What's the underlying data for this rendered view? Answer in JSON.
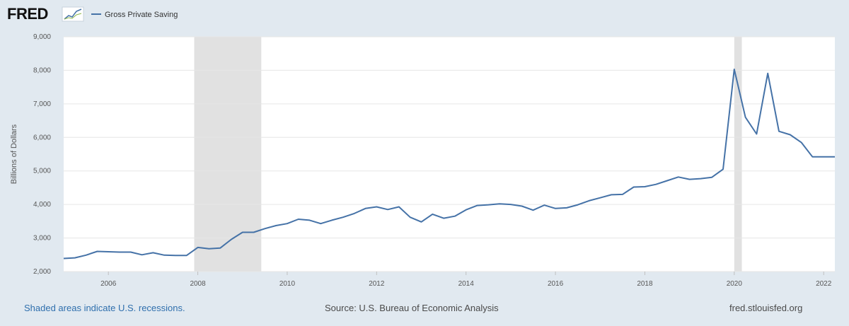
{
  "brand": {
    "name": "FRED",
    "logo_icon": "fred-line-chart-icon"
  },
  "footer": {
    "note": "Shaded areas indicate U.S. recessions.",
    "source": "Source: U.S. Bureau of Economic Analysis",
    "site": "fred.stlouisfed.org"
  },
  "colors": {
    "background": "#e1e9f0",
    "plot": "#ffffff",
    "line": "#4572a7",
    "recession": "#e1e1e1",
    "grid": "#e6e6e6",
    "note_link": "#2f6fad"
  },
  "chart_data": {
    "type": "line",
    "title": "",
    "xlabel": "",
    "ylabel": "Billions of Dollars",
    "legend": {
      "position": "top-left"
    },
    "grid": {
      "y": true,
      "x": false
    },
    "xlim": [
      2005.0,
      2022.25
    ],
    "ylim": [
      2000,
      9000
    ],
    "x_tick_labels": [
      "2006",
      "2008",
      "2010",
      "2012",
      "2014",
      "2016",
      "2018",
      "2020",
      "2022"
    ],
    "y_tick_labels": [
      "2,000",
      "3,000",
      "4,000",
      "5,000",
      "6,000",
      "7,000",
      "8,000",
      "9,000"
    ],
    "recessions": [
      [
        2007.92,
        2009.42
      ],
      [
        2020.0,
        2020.17
      ]
    ],
    "series": [
      {
        "name": "Gross Private Saving",
        "color": "#4572a7",
        "x": [
          2005.0,
          2005.25,
          2005.5,
          2005.75,
          2006.0,
          2006.25,
          2006.5,
          2006.75,
          2007.0,
          2007.25,
          2007.5,
          2007.75,
          2008.0,
          2008.25,
          2008.5,
          2008.75,
          2009.0,
          2009.25,
          2009.5,
          2009.75,
          2010.0,
          2010.25,
          2010.5,
          2010.75,
          2011.0,
          2011.25,
          2011.5,
          2011.75,
          2012.0,
          2012.25,
          2012.5,
          2012.75,
          2013.0,
          2013.25,
          2013.5,
          2013.75,
          2014.0,
          2014.25,
          2014.5,
          2014.75,
          2015.0,
          2015.25,
          2015.5,
          2015.75,
          2016.0,
          2016.25,
          2016.5,
          2016.75,
          2017.0,
          2017.25,
          2017.5,
          2017.75,
          2018.0,
          2018.25,
          2018.5,
          2018.75,
          2019.0,
          2019.25,
          2019.5,
          2019.75,
          2020.0,
          2020.25,
          2020.5,
          2020.75,
          2021.0,
          2021.25,
          2021.5,
          2021.75,
          2022.0,
          2022.25
        ],
        "values": [
          2390,
          2410,
          2490,
          2600,
          2590,
          2580,
          2580,
          2500,
          2560,
          2490,
          2480,
          2480,
          2720,
          2680,
          2700,
          2960,
          3170,
          3170,
          3280,
          3370,
          3430,
          3560,
          3530,
          3430,
          3530,
          3620,
          3730,
          3880,
          3930,
          3850,
          3930,
          3620,
          3480,
          3710,
          3590,
          3650,
          3840,
          3970,
          3990,
          4020,
          4000,
          3950,
          3830,
          3980,
          3880,
          3900,
          3990,
          4110,
          4200,
          4290,
          4300,
          4520,
          4530,
          4600,
          4710,
          4820,
          4750,
          4770,
          4810,
          5050,
          8030,
          6600,
          6100,
          7910,
          6180,
          6080,
          5850,
          5420,
          5420,
          5420
        ]
      }
    ]
  }
}
